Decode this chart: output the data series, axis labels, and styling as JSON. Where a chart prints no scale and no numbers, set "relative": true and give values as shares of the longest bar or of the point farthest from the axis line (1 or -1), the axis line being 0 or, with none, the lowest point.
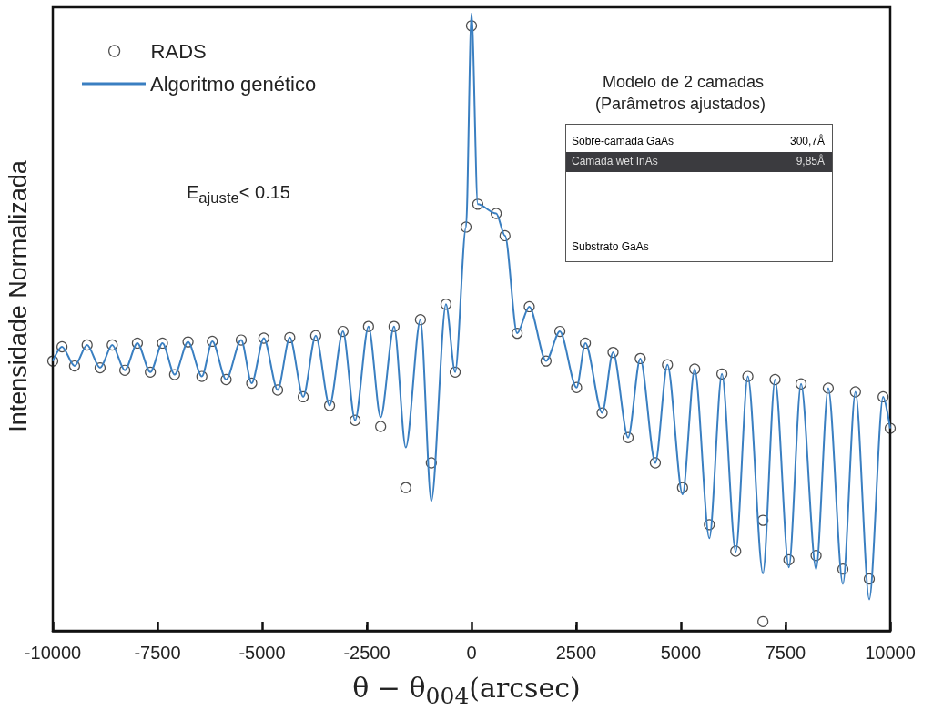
{
  "chart_data": {
    "type": "line",
    "relative": true,
    "xlabel": "θ − θ$_{004}$(arcsec)",
    "ylabel": "Intensidade Normalizada",
    "xlim": [
      -10000,
      10000
    ],
    "xticks": [
      -10000,
      -7500,
      -5000,
      -2500,
      0,
      2500,
      5000,
      7500,
      10000
    ],
    "grid": false,
    "legend": "top left",
    "annotations": [
      "E$_{ajuste}$< 0.15",
      "Modelo de 2 camadas",
      "(Parâmetros ajustados)",
      "Sobre-camada GaAs",
      "300,7Å",
      "Camada wet InAs",
      "9,85Å",
      "Substrato GaAs"
    ],
    "series": [
      {
        "name": "RADS",
        "type": "scatter",
        "marker": "circle",
        "color": "#222222",
        "x": [
          -10000,
          -9780,
          -9480,
          -9180,
          -8870,
          -8580,
          -8280,
          -7980,
          -7670,
          -7380,
          -7090,
          -6770,
          -6440,
          -6190,
          -5860,
          -5500,
          -5250,
          -4960,
          -4630,
          -4340,
          -4020,
          -3720,
          -3390,
          -3070,
          -2780,
          -2460,
          -2170,
          -1850,
          -1570,
          -1220,
          -960,
          -610,
          -390,
          -130,
          0,
          150,
          590,
          800,
          1090,
          1380,
          1780,
          2110,
          2510,
          2720,
          3120,
          3380,
          3740,
          4030,
          4390,
          4680,
          5040,
          5330,
          5680,
          5980,
          6310,
          6600,
          6960,
          6960,
          7250,
          7580,
          7870,
          8230,
          8520,
          8870,
          9170,
          9500,
          9830,
          10000
        ],
        "values": [
          0.437,
          0.46,
          0.429,
          0.463,
          0.426,
          0.463,
          0.422,
          0.466,
          0.419,
          0.466,
          0.415,
          0.468,
          0.412,
          0.469,
          0.407,
          0.471,
          0.401,
          0.474,
          0.39,
          0.475,
          0.379,
          0.478,
          0.365,
          0.485,
          0.341,
          0.493,
          0.331,
          0.493,
          0.232,
          0.504,
          0.272,
          0.529,
          0.419,
          0.654,
          0.98,
          0.691,
          0.676,
          0.64,
          0.482,
          0.525,
          0.437,
          0.485,
          0.394,
          0.466,
          0.353,
          0.451,
          0.313,
          0.441,
          0.272,
          0.431,
          0.232,
          0.424,
          0.172,
          0.416,
          0.129,
          0.412,
          0.179,
          0.015,
          0.407,
          0.115,
          0.4,
          0.122,
          0.393,
          0.1,
          0.387,
          0.084,
          0.379,
          0.328
        ]
      },
      {
        "name": "Algoritmo genético",
        "marker": "none",
        "color": "#3a7fc1",
        "x": [
          -10000,
          -9780,
          -9480,
          -9180,
          -8870,
          -8580,
          -8280,
          -7980,
          -7670,
          -7380,
          -7090,
          -6770,
          -6440,
          -6190,
          -5860,
          -5500,
          -5250,
          -4960,
          -4630,
          -4340,
          -4020,
          -3720,
          -3390,
          -3070,
          -2780,
          -2460,
          -2170,
          -1850,
          -1570,
          -1220,
          -960,
          -610,
          -390,
          -130,
          0,
          150,
          590,
          800,
          1090,
          1380,
          1780,
          2110,
          2510,
          2720,
          3120,
          3380,
          3740,
          4030,
          4390,
          4680,
          5040,
          5330,
          5680,
          5980,
          6310,
          6600,
          6960,
          7250,
          7580,
          7870,
          8230,
          8520,
          8870,
          9170,
          9500,
          9830,
          10000
        ],
        "values": [
          0.437,
          0.46,
          0.429,
          0.463,
          0.426,
          0.463,
          0.422,
          0.466,
          0.419,
          0.466,
          0.415,
          0.468,
          0.412,
          0.469,
          0.407,
          0.471,
          0.401,
          0.474,
          0.39,
          0.475,
          0.379,
          0.478,
          0.365,
          0.485,
          0.341,
          0.493,
          0.346,
          0.493,
          0.297,
          0.504,
          0.21,
          0.529,
          0.419,
          0.654,
          1,
          0.691,
          0.676,
          0.64,
          0.482,
          0.525,
          0.437,
          0.485,
          0.394,
          0.466,
          0.353,
          0.451,
          0.313,
          0.441,
          0.272,
          0.431,
          0.221,
          0.424,
          0.15,
          0.416,
          0.128,
          0.412,
          0.093,
          0.407,
          0.103,
          0.4,
          0.1,
          0.393,
          0.076,
          0.387,
          0.051,
          0.379,
          0.328
        ]
      }
    ]
  }
}
